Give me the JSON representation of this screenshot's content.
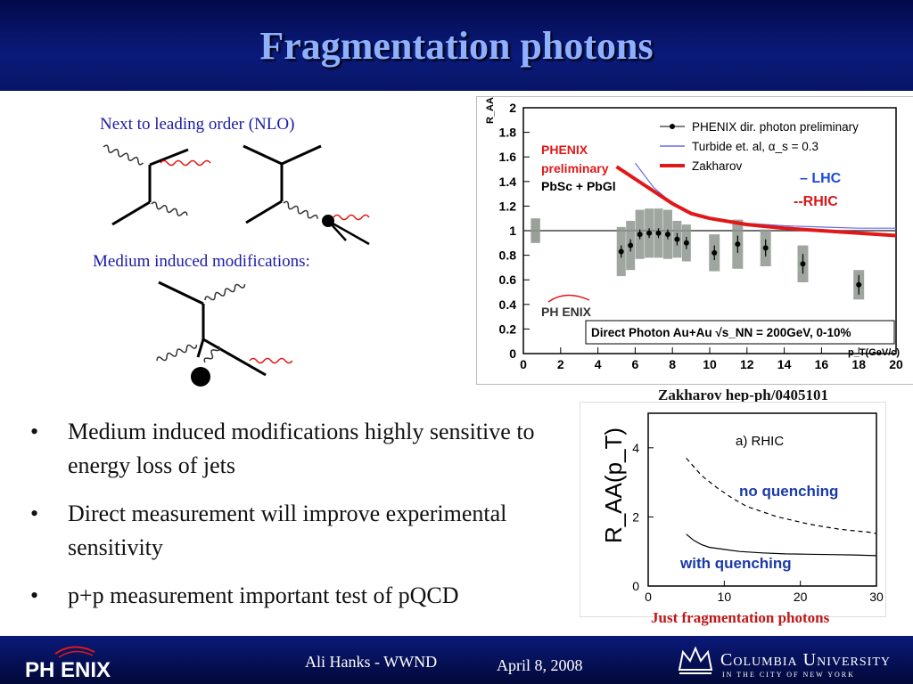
{
  "slide": {
    "title": "Fragmentation photons",
    "nlo_label": "Next to leading order (NLO)",
    "medium_label": "Medium induced modifications:",
    "bullets": [
      "Medium induced modifications highly sensitive to energy loss of jets",
      "Direct measurement will improve experimental sensitivity",
      "p+p measurement important test of pQCD"
    ],
    "bullet_glyph": "•"
  },
  "top_plot": {
    "ylabel": "R_AA",
    "xlabel": "p_T(GeV/c)",
    "legend": [
      "PHENIX dir. photon preliminary",
      "Turbide et. al, α_s = 0.3",
      "Zakharov"
    ],
    "inset_label": [
      "PHENIX",
      "preliminary",
      "PbSc + PbGl"
    ],
    "lhc_label": "– LHC",
    "rhic_label": "--RHIC",
    "logo_text": "PH ENIX",
    "bottom_box": "Direct Photon Au+Au √s_NN = 200GeV, 0-10%",
    "caption": "Zakharov hep-ph/0405101"
  },
  "chart_data": [
    {
      "type": "scatter",
      "xlabel": "p_T(GeV/c)",
      "ylabel": "R_AA",
      "xlim": [
        0,
        20
      ],
      "ylim": [
        0,
        2
      ],
      "xticks": [
        0,
        2,
        4,
        6,
        8,
        10,
        12,
        14,
        16,
        18,
        20
      ],
      "yticks": [
        0,
        0.2,
        0.4,
        0.6,
        0.8,
        1,
        1.2,
        1.4,
        1.6,
        1.8,
        2
      ],
      "reference_line": 1,
      "series": [
        {
          "name": "PHENIX dir. photon preliminary",
          "x": [
            5.25,
            5.75,
            6.25,
            6.75,
            7.25,
            7.75,
            8.25,
            8.75,
            10.25,
            11.5,
            13,
            15,
            18
          ],
          "y": [
            0.83,
            0.88,
            0.97,
            0.98,
            0.98,
            0.97,
            0.93,
            0.9,
            0.82,
            0.89,
            0.86,
            0.73,
            0.56
          ],
          "err": [
            0.05,
            0.05,
            0.04,
            0.04,
            0.04,
            0.04,
            0.05,
            0.05,
            0.06,
            0.07,
            0.07,
            0.08,
            0.08
          ],
          "sys": [
            0.2,
            0.2,
            0.2,
            0.2,
            0.2,
            0.2,
            0.15,
            0.15,
            0.15,
            0.2,
            0.15,
            0.15,
            0.12
          ]
        },
        {
          "name": "Turbide et. al, α_s = 0.3",
          "x": [
            6,
            7,
            8,
            9,
            10,
            12,
            14,
            16,
            18,
            20
          ],
          "y": [
            1.55,
            1.35,
            1.22,
            1.15,
            1.1,
            1.06,
            1.04,
            1.03,
            1.02,
            1.02
          ]
        },
        {
          "name": "Zakharov",
          "x": [
            5,
            6,
            7,
            8,
            9,
            10,
            12,
            14,
            16,
            18,
            20
          ],
          "y": [
            1.52,
            1.42,
            1.32,
            1.22,
            1.14,
            1.1,
            1.05,
            1.02,
            1.0,
            0.98,
            0.96
          ]
        }
      ]
    },
    {
      "type": "line",
      "title": "a) RHIC",
      "xlabel": "",
      "ylabel": "R_AA(p_T)",
      "xlim": [
        0,
        30
      ],
      "ylim": [
        0,
        5
      ],
      "xticks": [
        0,
        10,
        20,
        30
      ],
      "yticks": [
        0,
        2,
        4
      ],
      "series": [
        {
          "name": "no quenching",
          "x": [
            5,
            7,
            9,
            11,
            13,
            15,
            17,
            19,
            21,
            23,
            25,
            27,
            29,
            30
          ],
          "y": [
            3.7,
            3.2,
            2.85,
            2.55,
            2.3,
            2.15,
            2.0,
            1.9,
            1.8,
            1.72,
            1.65,
            1.6,
            1.56,
            1.52
          ]
        },
        {
          "name": "with quenching",
          "x": [
            5,
            6,
            7,
            8,
            10,
            12,
            15,
            18,
            21,
            24,
            27,
            30
          ],
          "y": [
            1.5,
            1.32,
            1.2,
            1.12,
            1.06,
            1.0,
            0.96,
            0.93,
            0.92,
            0.91,
            0.9,
            0.88
          ]
        }
      ],
      "caption": "Just fragmentation photons"
    }
  ],
  "footer": {
    "author": "Ali Hanks - WWND",
    "date": "April 8, 2008",
    "logo": "PH ENIX",
    "university": "Columbia University",
    "university_sub": "IN THE CITY OF NEW YORK"
  },
  "colors": {
    "title": "#8fb0ff",
    "title_bg": "#0a1a7a",
    "label_blue": "#1a1aa8",
    "zakharov_red": "#e01818",
    "turbide_blue": "#6a6ae8",
    "caption_red": "#c01818",
    "band_gray": "#8e968e"
  }
}
